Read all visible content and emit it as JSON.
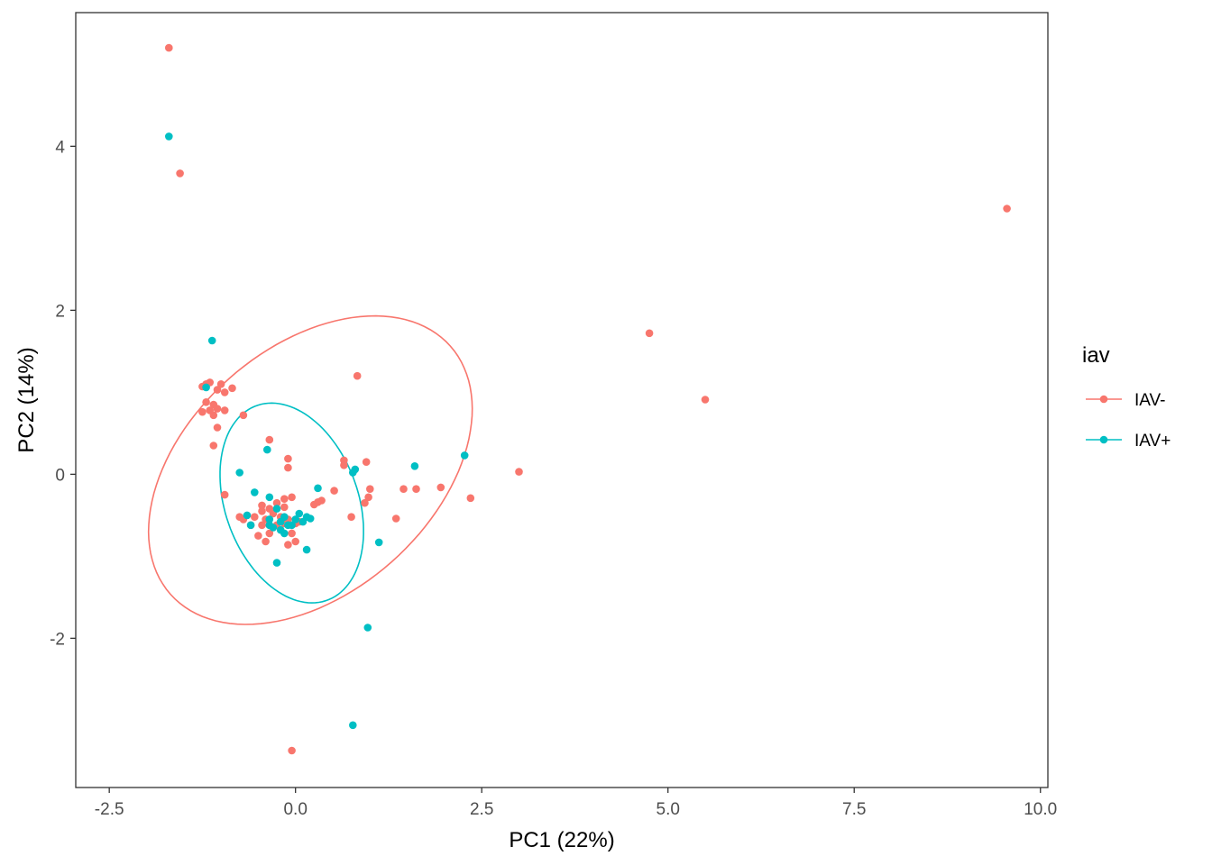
{
  "chart_data": {
    "type": "scatter",
    "xlabel": "PC1 (22%)",
    "ylabel": "PC2 (14%)",
    "xlim": [
      -2.95,
      10.1
    ],
    "ylim": [
      -3.82,
      5.63
    ],
    "x_ticks": [
      -2.5,
      0,
      2.5,
      5,
      7.5,
      10
    ],
    "x_tick_labels": [
      "-2.5",
      "0.0",
      "2.5",
      "5.0",
      "7.5",
      "10.0"
    ],
    "y_ticks": [
      -2,
      0,
      2,
      4
    ],
    "y_tick_labels": [
      "-2",
      "0",
      "2",
      "4"
    ],
    "grid": false,
    "legend": {
      "title": "iav",
      "position": "right"
    },
    "series": [
      {
        "name": "IAV-",
        "color": "#F8766D",
        "points": [
          [
            -1.7,
            5.2
          ],
          [
            -1.55,
            3.67
          ],
          [
            9.55,
            3.24
          ],
          [
            4.75,
            1.72
          ],
          [
            5.5,
            0.91
          ],
          [
            0.83,
            1.2
          ],
          [
            -1.2,
            1.1
          ],
          [
            -1.15,
            1.12
          ],
          [
            -1.0,
            1.1
          ],
          [
            -1.25,
            1.07
          ],
          [
            -1.05,
            1.03
          ],
          [
            -0.95,
            1.0
          ],
          [
            -0.85,
            1.05
          ],
          [
            -1.2,
            0.88
          ],
          [
            -1.1,
            0.85
          ],
          [
            -1.15,
            0.78
          ],
          [
            -1.25,
            0.76
          ],
          [
            -1.05,
            0.8
          ],
          [
            -1.1,
            0.72
          ],
          [
            -0.95,
            0.78
          ],
          [
            -0.7,
            0.72
          ],
          [
            -1.05,
            0.57
          ],
          [
            -1.1,
            0.35
          ],
          [
            -0.35,
            0.42
          ],
          [
            -0.95,
            -0.25
          ],
          [
            -0.1,
            0.19
          ],
          [
            -0.1,
            0.08
          ],
          [
            0.65,
            0.17
          ],
          [
            0.65,
            0.11
          ],
          [
            0.95,
            0.15
          ],
          [
            0.52,
            -0.2
          ],
          [
            0.35,
            -0.32
          ],
          [
            0.25,
            -0.37
          ],
          [
            0.3,
            -0.34
          ],
          [
            0.75,
            -0.52
          ],
          [
            1.0,
            -0.18
          ],
          [
            0.98,
            -0.28
          ],
          [
            0.93,
            -0.35
          ],
          [
            1.45,
            -0.18
          ],
          [
            1.62,
            -0.18
          ],
          [
            1.95,
            -0.16
          ],
          [
            2.35,
            -0.29
          ],
          [
            3.0,
            0.03
          ],
          [
            1.35,
            -0.54
          ],
          [
            -0.75,
            -0.52
          ],
          [
            -0.7,
            -0.55
          ],
          [
            -0.6,
            -0.62
          ],
          [
            -0.55,
            -0.52
          ],
          [
            -0.45,
            -0.45
          ],
          [
            -0.4,
            -0.55
          ],
          [
            -0.35,
            -0.62
          ],
          [
            -0.3,
            -0.48
          ],
          [
            -0.2,
            -0.52
          ],
          [
            -0.15,
            -0.6
          ],
          [
            -0.45,
            -0.62
          ],
          [
            -0.35,
            -0.72
          ],
          [
            -0.5,
            -0.75
          ],
          [
            -0.15,
            -0.4
          ],
          [
            -0.1,
            -0.55
          ],
          [
            0.0,
            -0.6
          ],
          [
            -0.05,
            -0.72
          ],
          [
            -0.1,
            -0.86
          ],
          [
            0.0,
            -0.82
          ],
          [
            -0.4,
            -0.82
          ],
          [
            -0.25,
            -0.62
          ],
          [
            -0.45,
            -0.38
          ],
          [
            -0.35,
            -0.42
          ],
          [
            -0.25,
            -0.35
          ],
          [
            -0.15,
            -0.3
          ],
          [
            -0.05,
            -0.28
          ],
          [
            0.05,
            -0.58
          ],
          [
            -0.05,
            -3.37
          ]
        ]
      },
      {
        "name": "IAV+",
        "color": "#00BFC4",
        "points": [
          [
            -1.7,
            4.12
          ],
          [
            -1.12,
            1.63
          ],
          [
            -1.2,
            1.06
          ],
          [
            2.27,
            0.23
          ],
          [
            -0.38,
            0.3
          ],
          [
            -0.75,
            0.02
          ],
          [
            0.8,
            0.06
          ],
          [
            0.77,
            0.02
          ],
          [
            1.6,
            0.1
          ],
          [
            0.3,
            -0.17
          ],
          [
            -0.55,
            -0.22
          ],
          [
            -0.35,
            -0.28
          ],
          [
            -0.25,
            -0.42
          ],
          [
            -0.65,
            -0.5
          ],
          [
            -0.6,
            -0.62
          ],
          [
            -0.35,
            -0.55
          ],
          [
            -0.2,
            -0.58
          ],
          [
            -0.15,
            -0.52
          ],
          [
            -0.05,
            -0.62
          ],
          [
            0.05,
            -0.48
          ],
          [
            0.15,
            -0.52
          ],
          [
            0.2,
            -0.54
          ],
          [
            -0.3,
            -0.65
          ],
          [
            -0.2,
            -0.68
          ],
          [
            -0.1,
            -0.62
          ],
          [
            0.0,
            -0.55
          ],
          [
            -0.15,
            -0.72
          ],
          [
            -0.35,
            -0.62
          ],
          [
            0.1,
            -0.58
          ],
          [
            1.12,
            -0.83
          ],
          [
            0.15,
            -0.92
          ],
          [
            -0.25,
            -1.08
          ],
          [
            0.97,
            -1.87
          ],
          [
            0.77,
            -3.06
          ]
        ]
      }
    ],
    "ellipses": [
      {
        "series": "IAV-",
        "color": "#F8766D",
        "cx": 0.2,
        "cy": 0.05,
        "rx": 2.42,
        "ry": 1.55,
        "angle_deg": 35
      },
      {
        "series": "IAV+",
        "color": "#00BFC4",
        "cx": -0.05,
        "cy": -0.35,
        "rx": 1.28,
        "ry": 0.88,
        "angle_deg": -65
      }
    ]
  }
}
